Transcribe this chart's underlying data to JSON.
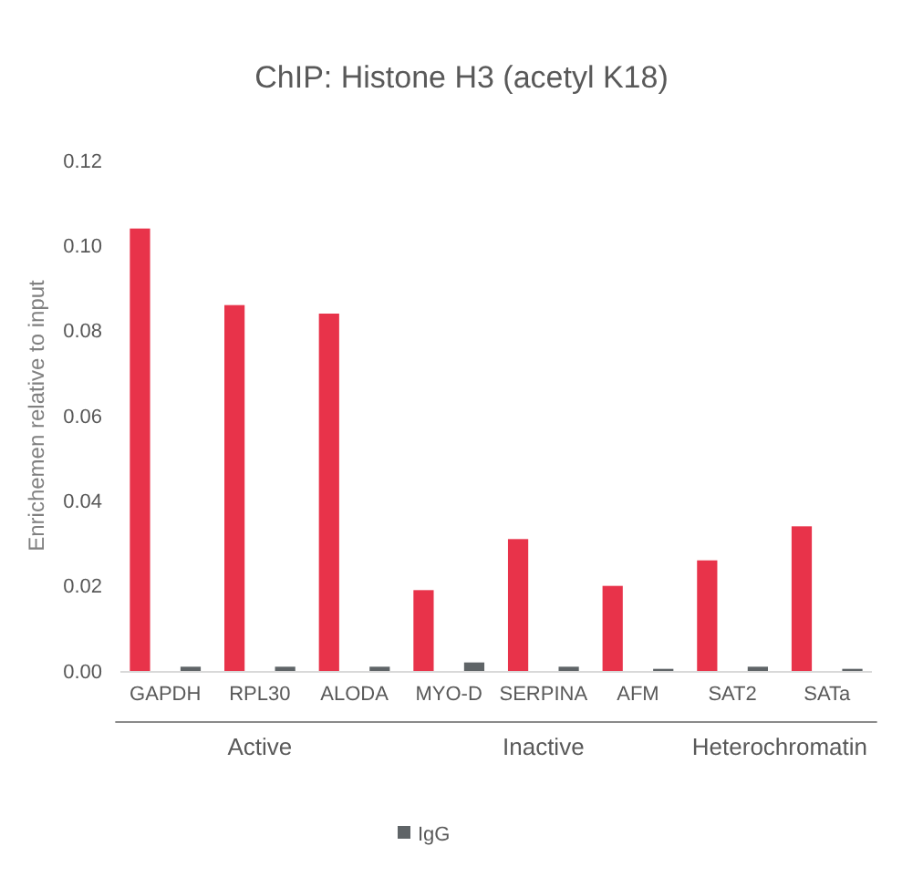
{
  "chart_data": {
    "type": "bar",
    "title": "ChIP: Histone H3 (acetyl K18)",
    "ylabel": "Enrichemen relative to input",
    "categories": [
      "GAPDH",
      "RPL30",
      "ALODA",
      "MYO-D",
      "SERPINA",
      "AFM",
      "SAT2",
      "SATa"
    ],
    "series": [
      {
        "color": "#e8334a",
        "values": [
          0.104,
          0.086,
          0.084,
          0.019,
          0.031,
          0.02,
          0.026,
          0.034
        ]
      },
      {
        "name": "IgG",
        "color": "#5f6467",
        "values": [
          0.001,
          0.001,
          0.001,
          0.002,
          0.001,
          0.0005,
          0.001,
          0.0005
        ]
      }
    ],
    "ylim": [
      0,
      0.12
    ],
    "yticks": [
      {
        "value": 0,
        "label": "0.00"
      },
      {
        "value": 0.02,
        "label": "0.02"
      },
      {
        "value": 0.04,
        "label": "0.04"
      },
      {
        "value": 0.06,
        "label": "0.06"
      },
      {
        "value": 0.08,
        "label": "0.08"
      },
      {
        "value": 0.1,
        "label": "0.10"
      },
      {
        "value": 0.12,
        "label": "0.12"
      }
    ],
    "annotations": [
      "Active",
      "Inactive",
      "Heterochromatin"
    ],
    "legend": "bottom"
  }
}
